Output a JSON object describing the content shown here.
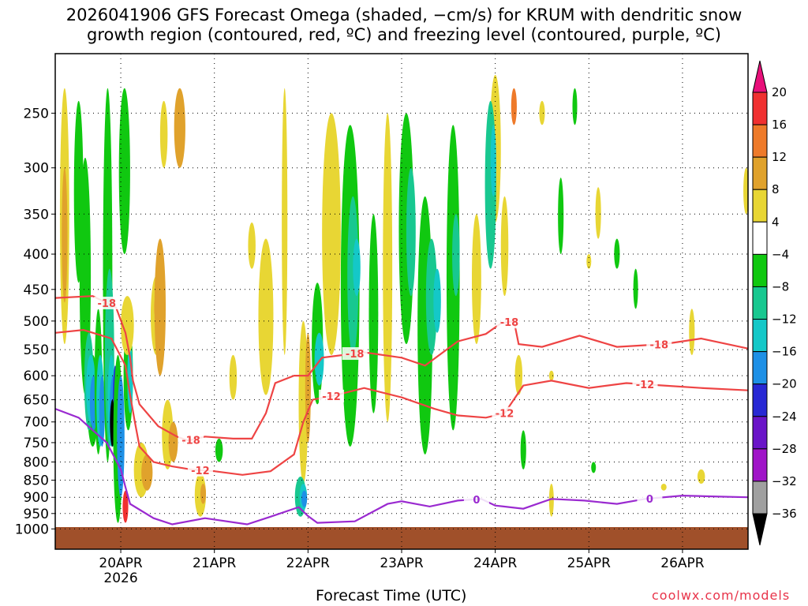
{
  "title": {
    "line1": "2026041906 GFS Forecast Omega (shaded, −cm/s) for KRUM with dendritic snow",
    "line2": "growth region (contoured, red, ºC) and freezing level (contoured, purple, ºC)"
  },
  "x_axis_title": "Forecast Time (UTC)",
  "credit": "coolwx.com/models",
  "chart_data": {
    "type": "heatmap",
    "model_run": "2026041906",
    "station": "KRUM",
    "y_axis": {
      "quantity": "pressure (hPa)",
      "ticks": [
        250,
        300,
        350,
        400,
        450,
        500,
        550,
        600,
        650,
        700,
        750,
        800,
        850,
        900,
        950,
        1000
      ]
    },
    "x_axis": {
      "ticks": [
        "20APR",
        "21APR",
        "22APR",
        "23APR",
        "24APR",
        "25APR",
        "26APR"
      ],
      "tick_positions_days": [
        1,
        2,
        3,
        4,
        5,
        6,
        7
      ],
      "year_label": "2026",
      "range_days": [
        0.3,
        7.7
      ]
    },
    "grid": true,
    "colorbar": {
      "ticks": [
        20,
        16,
        12,
        8,
        4,
        -4,
        -8,
        -12,
        -16,
        -20,
        -24,
        -28,
        -32,
        -36
      ],
      "bins": [
        {
          "lo": 20,
          "hi": null,
          "color": "#e8107a"
        },
        {
          "lo": 16,
          "hi": 20,
          "color": "#f03030"
        },
        {
          "lo": 12,
          "hi": 16,
          "color": "#ee7a2a"
        },
        {
          "lo": 8,
          "hi": 12,
          "color": "#e0a22c"
        },
        {
          "lo": 4,
          "hi": 8,
          "color": "#e8d634"
        },
        {
          "lo": -4,
          "hi": 4,
          "color": "#ffffff"
        },
        {
          "lo": -8,
          "hi": -4,
          "color": "#10c810"
        },
        {
          "lo": -12,
          "hi": -8,
          "color": "#18c890"
        },
        {
          "lo": -16,
          "hi": -12,
          "color": "#14c8c8"
        },
        {
          "lo": -20,
          "hi": -16,
          "color": "#1e90e6"
        },
        {
          "lo": -24,
          "hi": -20,
          "color": "#2828d4"
        },
        {
          "lo": -28,
          "hi": -24,
          "color": "#6a14c8"
        },
        {
          "lo": -32,
          "hi": -28,
          "color": "#a014c8"
        },
        {
          "lo": -36,
          "hi": -32,
          "color": "#a0a0a0"
        },
        {
          "lo": null,
          "hi": -36,
          "color": "#000000"
        }
      ]
    },
    "contours": [
      {
        "name": "dgz -18C",
        "value": -18,
        "color": "#ee4444",
        "points": [
          [
            0.3,
            463
          ],
          [
            0.7,
            460
          ],
          [
            0.95,
            478
          ],
          [
            1.05,
            520
          ],
          [
            1.1,
            565
          ],
          [
            1.13,
            610
          ],
          [
            1.2,
            660
          ],
          [
            1.4,
            710
          ],
          [
            1.6,
            735
          ],
          [
            1.72,
            745
          ],
          [
            1.9,
            735
          ],
          [
            2.2,
            740
          ],
          [
            2.4,
            740
          ],
          [
            2.55,
            680
          ],
          [
            2.65,
            615
          ],
          [
            2.85,
            600
          ],
          [
            3.0,
            600
          ],
          [
            3.15,
            565
          ],
          [
            3.6,
            555
          ],
          [
            4.0,
            565
          ],
          [
            4.25,
            580
          ],
          [
            4.6,
            535
          ],
          [
            4.9,
            522
          ],
          [
            5.05,
            505
          ],
          [
            5.2,
            500
          ],
          [
            5.25,
            540
          ],
          [
            5.5,
            545
          ],
          [
            5.9,
            525
          ],
          [
            6.3,
            545
          ],
          [
            6.8,
            540
          ],
          [
            7.2,
            530
          ],
          [
            7.7,
            548
          ]
        ],
        "label_x": [
          0.85,
          1.75,
          3.5,
          5.15,
          6.75
        ]
      },
      {
        "name": "dgz -12C",
        "value": -12,
        "color": "#ee4444",
        "points": [
          [
            0.3,
            520
          ],
          [
            0.6,
            515
          ],
          [
            0.9,
            530
          ],
          [
            1.05,
            580
          ],
          [
            1.1,
            640
          ],
          [
            1.15,
            700
          ],
          [
            1.2,
            760
          ],
          [
            1.35,
            800
          ],
          [
            1.55,
            812
          ],
          [
            1.75,
            820
          ],
          [
            2.0,
            825
          ],
          [
            2.3,
            835
          ],
          [
            2.6,
            825
          ],
          [
            2.85,
            780
          ],
          [
            2.95,
            700
          ],
          [
            3.05,
            650
          ],
          [
            3.3,
            640
          ],
          [
            3.6,
            625
          ],
          [
            4.0,
            645
          ],
          [
            4.35,
            670
          ],
          [
            4.6,
            685
          ],
          [
            4.9,
            690
          ],
          [
            5.1,
            680
          ],
          [
            5.3,
            620
          ],
          [
            5.6,
            610
          ],
          [
            6.0,
            625
          ],
          [
            6.4,
            615
          ],
          [
            6.8,
            620
          ],
          [
            7.2,
            625
          ],
          [
            7.7,
            630
          ]
        ],
        "label_x": [
          1.85,
          3.25,
          5.1,
          6.6
        ]
      },
      {
        "name": "freezing level 0C",
        "value": 0,
        "color": "#9a2ad0",
        "points": [
          [
            0.3,
            670
          ],
          [
            0.55,
            690
          ],
          [
            0.85,
            750
          ],
          [
            1.0,
            820
          ],
          [
            1.05,
            870
          ],
          [
            1.1,
            920
          ],
          [
            1.35,
            965
          ],
          [
            1.55,
            985
          ],
          [
            1.9,
            965
          ],
          [
            2.35,
            985
          ],
          [
            2.6,
            960
          ],
          [
            2.9,
            930
          ],
          [
            3.0,
            958
          ],
          [
            3.1,
            980
          ],
          [
            3.5,
            975
          ],
          [
            3.85,
            920
          ],
          [
            4.0,
            912
          ],
          [
            4.3,
            928
          ],
          [
            4.6,
            910
          ],
          [
            4.85,
            905
          ],
          [
            5.0,
            925
          ],
          [
            5.3,
            935
          ],
          [
            5.6,
            905
          ],
          [
            5.95,
            910
          ],
          [
            6.3,
            920
          ],
          [
            6.6,
            905
          ],
          [
            7.0,
            895
          ],
          [
            7.4,
            898
          ],
          [
            7.7,
            900
          ]
        ],
        "label_x": [
          4.8,
          6.65
        ]
      }
    ]
  }
}
